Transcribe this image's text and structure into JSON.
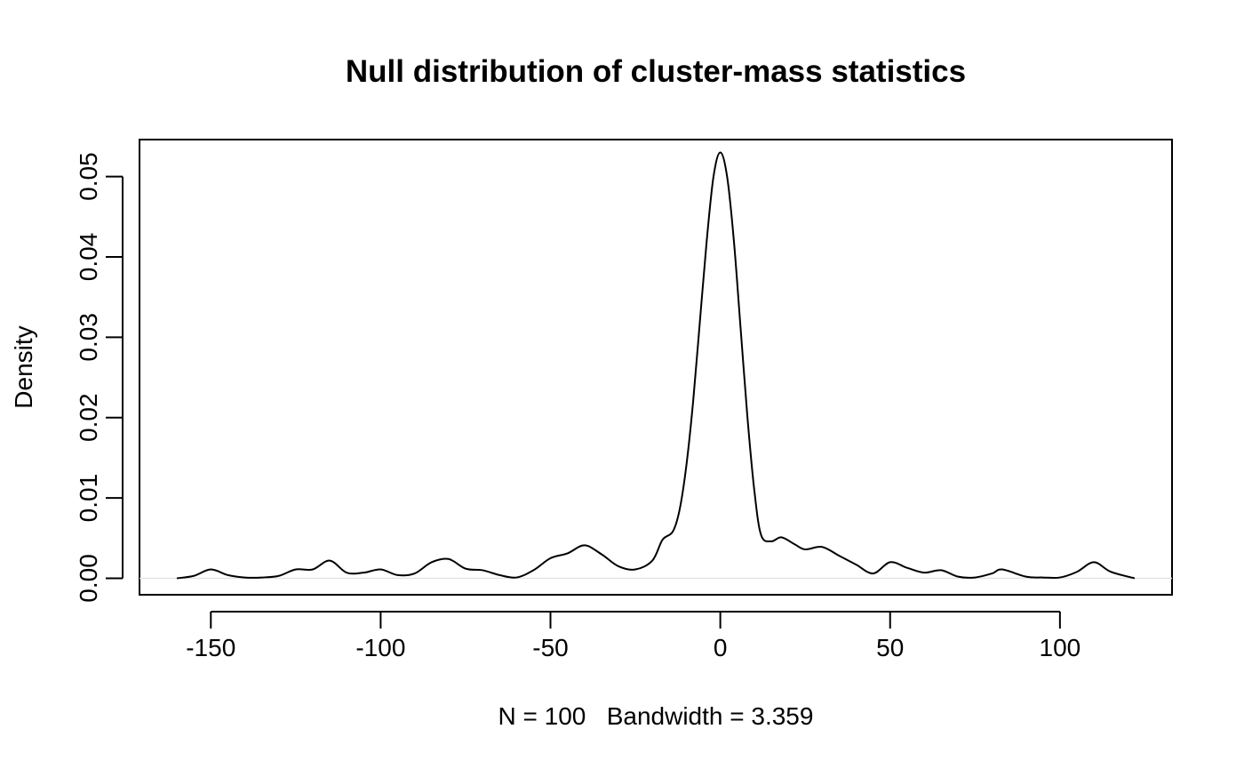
{
  "chart_data": {
    "type": "line",
    "title": "Null distribution of cluster-mass statistics",
    "xlabel": "N = 100   Bandwidth = 3.359",
    "ylabel": "Density",
    "xlim": [
      -171,
      133
    ],
    "ylim": [
      -0.00205,
      0.0546
    ],
    "xticks": [
      -150,
      -100,
      -50,
      0,
      50,
      100
    ],
    "xtick_labels": [
      "-150",
      "-100",
      "-50",
      "0",
      "50",
      "100"
    ],
    "yticks": [
      0,
      0.01,
      0.02,
      0.03,
      0.04,
      0.05
    ],
    "ytick_labels": [
      "0.00",
      "0.01",
      "0.02",
      "0.03",
      "0.04",
      "0.05"
    ],
    "grid": false,
    "zero_reference_line": true,
    "colors": {
      "line": "#000000",
      "zero_line": "#e3e3e3",
      "background": "#ffffff"
    },
    "series": [
      {
        "x": [
          -160,
          -155,
          -150,
          -145,
          -140,
          -135,
          -130,
          -125,
          -120,
          -115,
          -110,
          -105,
          -100,
          -95,
          -90,
          -85,
          -80,
          -75,
          -70,
          -65,
          -60,
          -55,
          -50,
          -45,
          -40,
          -35,
          -30,
          -25,
          -20,
          -17,
          -14,
          -12,
          -10,
          -8,
          -6,
          -4,
          -2,
          0,
          2,
          4,
          6,
          8,
          10,
          12,
          15,
          18,
          22,
          25,
          30,
          35,
          40,
          45,
          50,
          55,
          60,
          65,
          70,
          75,
          80,
          83,
          90,
          95,
          100,
          105,
          110,
          115,
          122
        ],
        "y": [
          0,
          0.0003,
          0.0011,
          0.0004,
          0.0001,
          0.0001,
          0.0003,
          0.0011,
          0.0011,
          0.0022,
          0.0007,
          0.0007,
          0.0011,
          0.0004,
          0.0006,
          0.002,
          0.0024,
          0.0012,
          0.001,
          0.0004,
          0.0001,
          0.001,
          0.0025,
          0.0031,
          0.0041,
          0.003,
          0.0015,
          0.0011,
          0.0022,
          0.0048,
          0.0058,
          0.0085,
          0.014,
          0.022,
          0.032,
          0.042,
          0.05,
          0.053,
          0.05,
          0.042,
          0.031,
          0.02,
          0.011,
          0.0054,
          0.0046,
          0.0051,
          0.0042,
          0.0036,
          0.0039,
          0.0028,
          0.0017,
          0.0006,
          0.002,
          0.0013,
          0.0007,
          0.001,
          0.0002,
          0.0001,
          0.0006,
          0.0011,
          0.0002,
          0.0001,
          0.0001,
          0.0008,
          0.002,
          0.0008,
          0
        ]
      }
    ]
  }
}
